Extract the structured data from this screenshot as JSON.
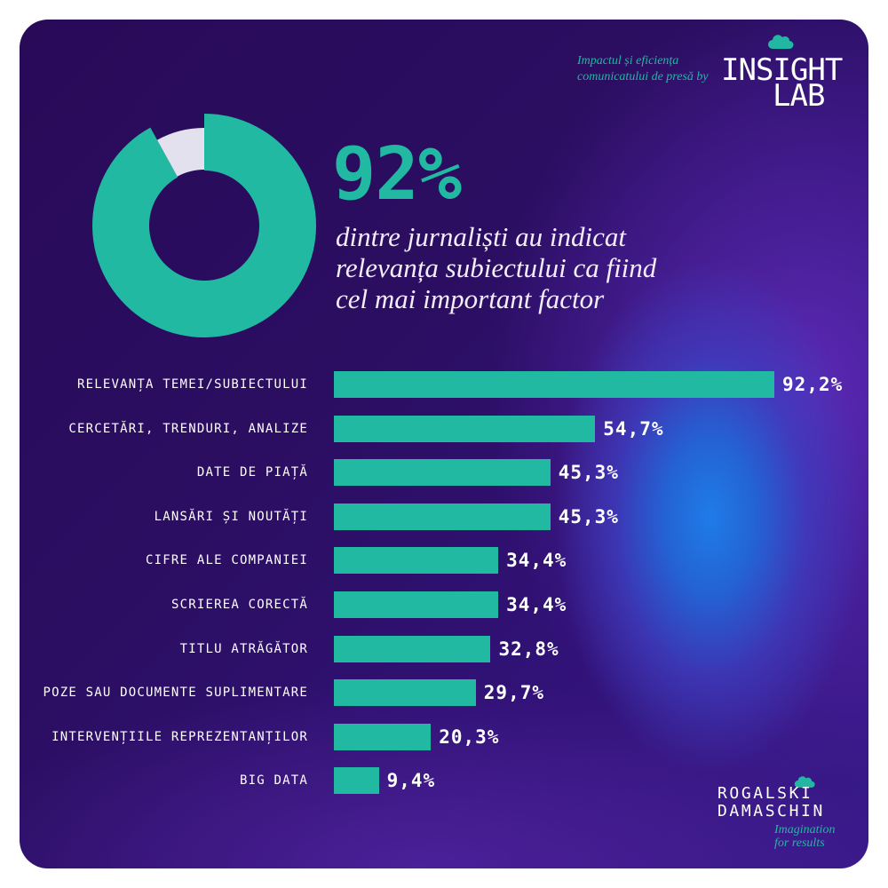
{
  "colors": {
    "accent": "#22b9a3",
    "background": "#2b0e60",
    "text": "#ffffff",
    "donut_rest": "#e4e1ee",
    "glow": "#1f7ce9"
  },
  "header": {
    "tagline_line1": "Impactul și eficiența",
    "tagline_line2": "comunicatului de presă by",
    "logo_line1": "INSIGHT",
    "logo_line2": "LAB",
    "logo_icon": "cloud-icon"
  },
  "headline": {
    "value": "92%",
    "line1": "dintre jurnaliști au indicat",
    "line2": "relevanța subiectului ca fiind",
    "line3": "cel mai important factor"
  },
  "chart_data": [
    {
      "type": "pie",
      "style": "donut",
      "values": [
        92,
        8
      ],
      "colors": [
        "#22b9a3",
        "#e4e1ee"
      ]
    },
    {
      "type": "bar",
      "orientation": "horizontal",
      "categories": [
        "RELEVANȚA TEMEI/SUBIECTULUI",
        "CERCETĂRI, TRENDURI, ANALIZE",
        "DATE DE PIAȚĂ",
        "LANSĂRI ȘI NOUTĂȚI",
        "CIFRE ALE COMPANIEI",
        "SCRIEREA CORECTĂ",
        "TITLU ATRĂGĂTOR",
        "POZE SAU DOCUMENTE SUPLIMENTARE",
        "INTERVENȚIILE REPREZENTANȚILOR",
        "BIG DATA"
      ],
      "values": [
        92.2,
        54.7,
        45.3,
        45.3,
        34.4,
        34.4,
        32.8,
        29.7,
        20.3,
        9.4
      ],
      "value_labels": [
        "92,2%",
        "54,7%",
        "45,3%",
        "45,3%",
        "34,4%",
        "34,4%",
        "32,8%",
        "29,7%",
        "20,3%",
        "9,4%"
      ],
      "xlim": [
        0,
        100
      ],
      "grid": false,
      "color": "#22b9a3"
    }
  ],
  "footer": {
    "logo_line1": "ROGALSKI",
    "logo_line2": "DAMASCHIN",
    "tagline_line1": "Imagination",
    "tagline_line2": "for results",
    "logo_icon": "cloud-icon"
  }
}
